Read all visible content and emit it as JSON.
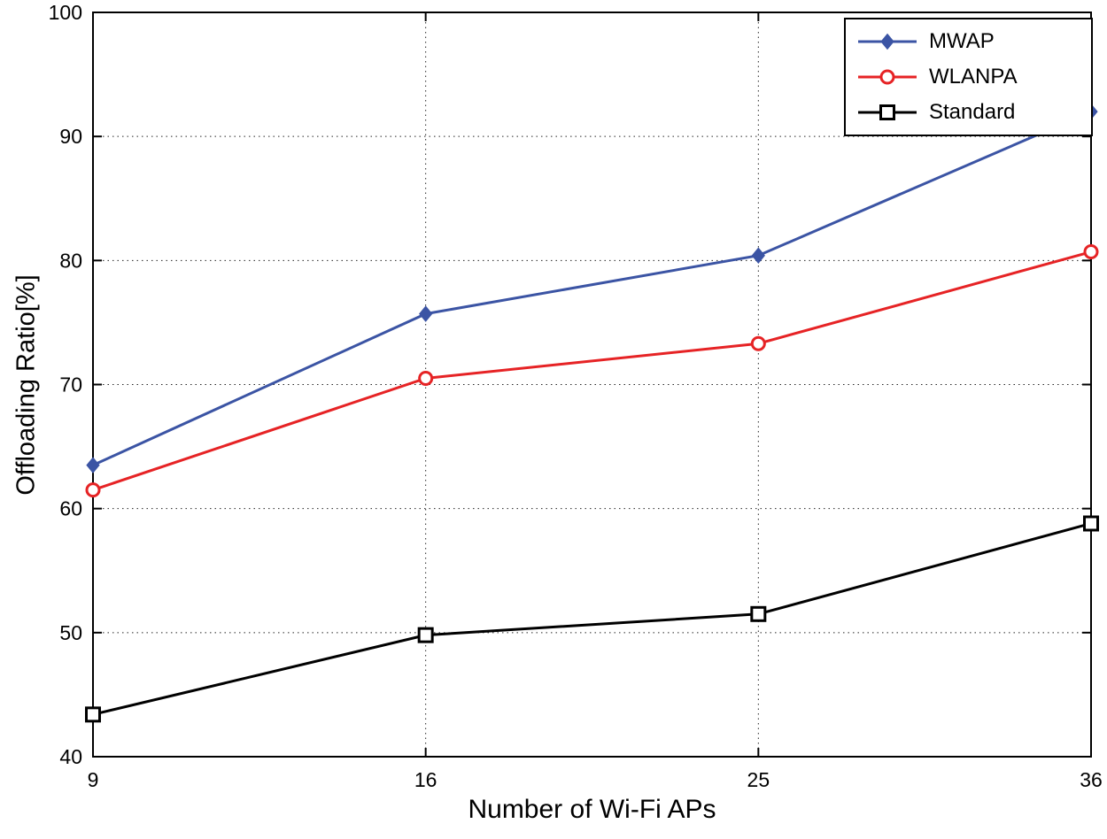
{
  "chart_data": {
    "type": "line",
    "title": "",
    "xlabel": "Number of Wi-Fi APs",
    "ylabel": "Offloading Ratio[%]",
    "categories": [
      "9",
      "16",
      "25",
      "36"
    ],
    "yticks": [
      40,
      50,
      60,
      70,
      80,
      90,
      100
    ],
    "ylim": [
      40,
      100
    ],
    "grid": "dotted",
    "legend_position": "top-right",
    "series": [
      {
        "name": "MWAP",
        "marker": "diamond",
        "color": "#3b54a4",
        "values": [
          63.5,
          75.7,
          80.4,
          92.0
        ]
      },
      {
        "name": "WLANPA",
        "marker": "circle",
        "color": "#e62325",
        "values": [
          61.5,
          70.5,
          73.3,
          80.7
        ]
      },
      {
        "name": "Standard",
        "marker": "square",
        "color": "#000000",
        "values": [
          43.4,
          49.8,
          51.5,
          58.8
        ]
      }
    ]
  }
}
